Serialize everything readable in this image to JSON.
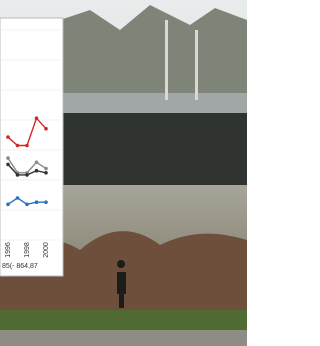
{
  "chart_data": {
    "type": "line",
    "categories": [
      "1996",
      null,
      "1998",
      null,
      "2000"
    ],
    "ylim": [
      0,
      100
    ],
    "caption": "85(- 864,87",
    "series": [
      {
        "color": "#d02828",
        "values": [
          49,
          45,
          45,
          58,
          53
        ]
      },
      {
        "color": "#8a8a8a",
        "values": [
          39,
          32,
          32,
          37,
          34
        ]
      },
      {
        "color": "#333333",
        "values": [
          36,
          31,
          31,
          33,
          32
        ]
      },
      {
        "color": "#2a6fc0",
        "values": [
          17,
          20,
          17,
          18,
          18
        ]
      }
    ]
  }
}
